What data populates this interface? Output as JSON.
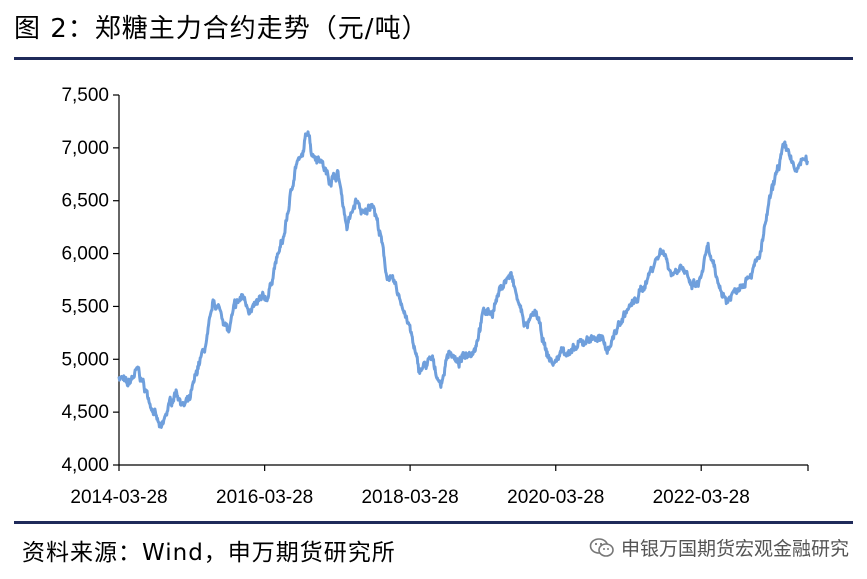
{
  "header": {
    "title": "图 2：郑糖主力合约走势（元/吨）"
  },
  "footer": {
    "source": "资料来源：Wind，申万期货研究所",
    "brand": "申银万国期货宏观金融研究"
  },
  "icons": {
    "brand_icon": "wechat-icon"
  },
  "colors": {
    "line": "#6f9fdc",
    "rule": "#1f2a5a",
    "axis": "#000000"
  },
  "chart_data": {
    "type": "line",
    "title": "",
    "xlabel": "",
    "ylabel": "",
    "ylim": [
      4000,
      7500
    ],
    "yticks": [
      4000,
      4500,
      5000,
      5500,
      6000,
      6500,
      7000,
      7500
    ],
    "ytick_labels": [
      "4,000",
      "4,500",
      "5,000",
      "5,500",
      "6,000",
      "6,500",
      "7,000",
      "7,500"
    ],
    "xlim": [
      "2014-03-28",
      "2023-09-15"
    ],
    "xticks": [
      "2014-03-28",
      "2016-03-28",
      "2018-03-28",
      "2020-03-28",
      "2022-03-28"
    ],
    "grid": false,
    "series": [
      {
        "x": [
          "2014-03-28",
          "2014-05-10",
          "2014-07-01",
          "2014-08-20",
          "2014-09-20",
          "2014-10-25",
          "2014-12-01",
          "2015-01-10",
          "2015-02-15",
          "2015-03-20",
          "2015-05-01",
          "2015-06-10",
          "2015-07-15",
          "2015-08-20",
          "2015-09-30",
          "2015-10-30",
          "2015-12-10",
          "2016-01-20",
          "2016-03-01",
          "2016-04-15",
          "2016-05-20",
          "2016-07-01",
          "2016-08-10",
          "2016-09-01",
          "2016-10-01",
          "2016-11-01",
          "2016-11-20",
          "2017-01-01",
          "2017-02-15",
          "2017-04-01",
          "2017-05-15",
          "2017-06-30",
          "2017-08-10",
          "2017-09-20",
          "2017-11-01",
          "2017-12-01",
          "2018-01-10",
          "2018-02-20",
          "2018-04-01",
          "2018-05-10",
          "2018-06-20",
          "2018-07-15",
          "2018-08-30",
          "2018-10-10",
          "2018-11-20",
          "2019-01-01",
          "2019-02-15",
          "2019-04-01",
          "2019-05-15",
          "2019-07-01",
          "2019-08-15",
          "2019-09-20",
          "2019-11-01",
          "2019-12-20",
          "2020-02-10",
          "2020-03-20",
          "2020-05-01",
          "2020-06-15",
          "2020-08-01",
          "2020-09-15",
          "2020-11-01",
          "2020-12-15",
          "2021-02-01",
          "2021-03-15",
          "2021-05-01",
          "2021-06-15",
          "2021-08-01",
          "2021-09-15",
          "2021-11-01",
          "2021-12-15",
          "2022-02-01",
          "2022-03-15",
          "2022-05-01",
          "2022-06-15",
          "2022-08-01",
          "2022-09-15",
          "2022-11-01",
          "2022-12-15",
          "2023-01-20",
          "2023-03-01",
          "2023-04-15",
          "2023-05-15",
          "2023-06-15",
          "2023-07-15",
          "2023-08-15",
          "2023-09-15"
        ],
        "values": [
          4850,
          4750,
          4900,
          4650,
          4500,
          4320,
          4550,
          4700,
          4550,
          4620,
          4950,
          5150,
          5550,
          5450,
          5250,
          5500,
          5600,
          5450,
          5550,
          5600,
          5900,
          6150,
          6600,
          6850,
          6900,
          7200,
          6950,
          6900,
          6700,
          6750,
          6250,
          6500,
          6350,
          6500,
          6150,
          5800,
          5700,
          5500,
          5250,
          4900,
          4950,
          5000,
          4750,
          5100,
          4950,
          5050,
          5100,
          5450,
          5450,
          5700,
          5800,
          5550,
          5300,
          5450,
          5050,
          4950,
          5100,
          5050,
          5150,
          5200,
          5200,
          5100,
          5300,
          5450,
          5550,
          5700,
          5900,
          6050,
          5800,
          5900,
          5700,
          5700,
          6050,
          5750,
          5550,
          5650,
          5750,
          5850,
          6000,
          6450,
          6800,
          7000,
          6950,
          6750,
          6900,
          6850
        ]
      }
    ]
  }
}
